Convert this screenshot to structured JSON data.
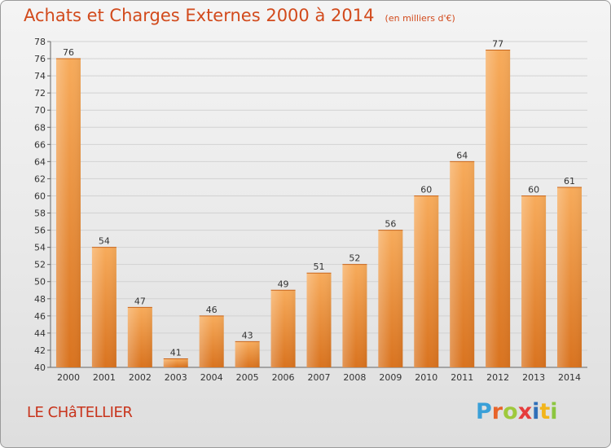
{
  "title": "Achats et Charges Externes 2000 à 2014",
  "unit": "(en milliers d'€)",
  "location": "LE CHâTELLIER",
  "logo_text": "Proxiti",
  "colors": {
    "bar_light": "#f7ab5b",
    "bar_dark": "#d9731f",
    "title": "#d24a1c",
    "grid": "#cfcfcf"
  },
  "chart_data": {
    "type": "bar",
    "title": "Achats et Charges Externes 2000 à 2014",
    "subtitle": "(en milliers d'€)",
    "categories": [
      "2000",
      "2001",
      "2002",
      "2003",
      "2004",
      "2005",
      "2006",
      "2007",
      "2008",
      "2009",
      "2010",
      "2011",
      "2012",
      "2013",
      "2014"
    ],
    "values": [
      76,
      54,
      47,
      41,
      46,
      43,
      49,
      51,
      52,
      56,
      60,
      64,
      77,
      60,
      61
    ],
    "ylim": [
      40,
      78
    ],
    "yticks": [
      40,
      42,
      44,
      46,
      48,
      50,
      52,
      54,
      56,
      58,
      60,
      62,
      64,
      66,
      68,
      70,
      72,
      74,
      76,
      78
    ],
    "grid": true,
    "data_labels": true
  }
}
